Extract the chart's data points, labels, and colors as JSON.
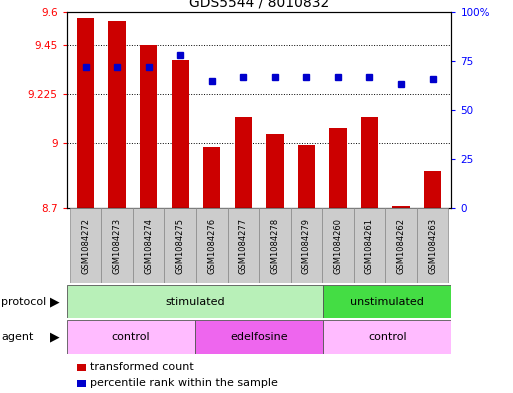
{
  "title": "GDS5544 / 8010832",
  "samples": [
    "GSM1084272",
    "GSM1084273",
    "GSM1084274",
    "GSM1084275",
    "GSM1084276",
    "GSM1084277",
    "GSM1084278",
    "GSM1084279",
    "GSM1084260",
    "GSM1084261",
    "GSM1084262",
    "GSM1084263"
  ],
  "bar_values": [
    9.57,
    9.56,
    9.45,
    9.38,
    8.98,
    9.12,
    9.04,
    8.99,
    9.07,
    9.12,
    8.71,
    8.87
  ],
  "percentile_values": [
    72,
    72,
    72,
    78,
    65,
    67,
    67,
    67,
    67,
    67,
    63,
    66
  ],
  "bar_bottom": 8.7,
  "ylim_left": [
    8.7,
    9.6
  ],
  "ylim_right": [
    0,
    100
  ],
  "yticks_left": [
    8.7,
    9.0,
    9.225,
    9.45,
    9.6
  ],
  "ytick_labels_left": [
    "8.7",
    "9",
    "9.225",
    "9.45",
    "9.6"
  ],
  "yticks_right": [
    0,
    25,
    50,
    75,
    100
  ],
  "ytick_labels_right": [
    "0",
    "25",
    "50",
    "75",
    "100%"
  ],
  "bar_color": "#cc0000",
  "dot_color": "#0000cc",
  "protocol_groups": [
    {
      "label": "stimulated",
      "start": 0,
      "end": 7,
      "color": "#b8f0b8"
    },
    {
      "label": "unstimulated",
      "start": 8,
      "end": 11,
      "color": "#44dd44"
    }
  ],
  "agent_groups": [
    {
      "label": "control",
      "start": 0,
      "end": 3,
      "color": "#ffbbff"
    },
    {
      "label": "edelfosine",
      "start": 4,
      "end": 7,
      "color": "#ee66ee"
    },
    {
      "label": "control",
      "start": 8,
      "end": 11,
      "color": "#ffbbff"
    }
  ],
  "title_fontsize": 10,
  "tick_fontsize": 7.5,
  "sample_fontsize": 6,
  "row_label_fontsize": 8,
  "legend_fontsize": 8
}
